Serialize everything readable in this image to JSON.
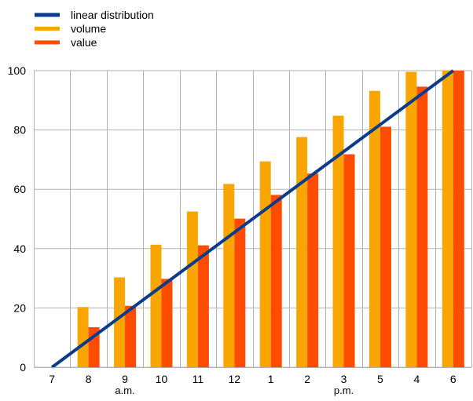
{
  "chart_data": {
    "type": "bar",
    "categories": [
      "7",
      "8",
      "9",
      "10",
      "11",
      "12",
      "1",
      "2",
      "3",
      "5",
      "4",
      "6"
    ],
    "x_sublabels": [
      {
        "category": "9",
        "text": "a.m."
      },
      {
        "category": "3",
        "text": "p.m."
      }
    ],
    "series": [
      {
        "name": "volume",
        "kind": "bar",
        "color": "#f9a602",
        "values": [
          0,
          20.3,
          30.3,
          41.3,
          52.5,
          61.8,
          69.4,
          77.6,
          84.8,
          93.2,
          99.6,
          100
        ]
      },
      {
        "name": "value",
        "kind": "bar",
        "color": "#ff4c00",
        "values": [
          0,
          13.5,
          20.7,
          29.8,
          41.1,
          50.1,
          58.1,
          65.3,
          71.8,
          81.1,
          94.6,
          100
        ]
      },
      {
        "name": "linear distribution",
        "kind": "line",
        "color": "#0b3c8c",
        "values": [
          0,
          9.09,
          18.18,
          27.27,
          36.36,
          45.45,
          54.55,
          63.64,
          72.73,
          81.82,
          90.91,
          100
        ]
      }
    ],
    "legend_order": [
      "linear distribution",
      "volume",
      "value"
    ],
    "yticks": [
      0,
      20,
      40,
      60,
      80,
      100
    ],
    "ylim": [
      0,
      100
    ],
    "grid": true,
    "legend_position": "top-left",
    "title": "",
    "xlabel": "",
    "ylabel": ""
  }
}
